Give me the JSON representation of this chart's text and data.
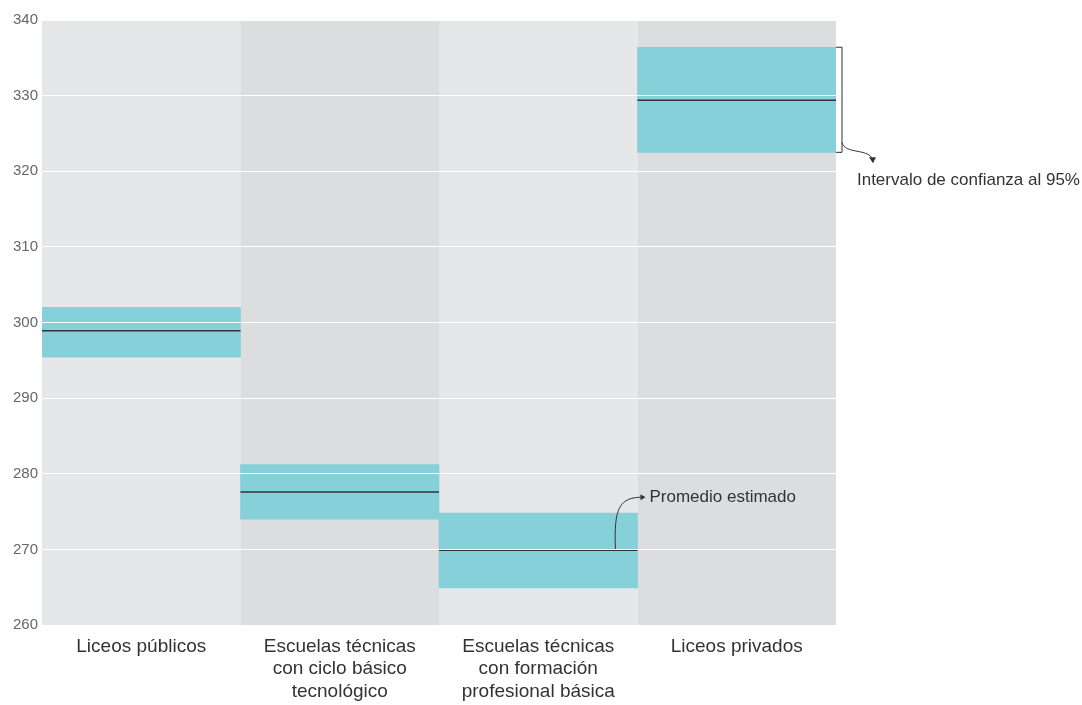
{
  "chart_data": {
    "type": "box",
    "categories": [
      "Liceos públicos",
      "Escuelas técnicas con ciclo básico tecnológico",
      "Escuelas técnicas con formación profesional básica",
      "Liceos privados"
    ],
    "series": [
      {
        "color": "#86d0d9",
        "boxes": [
          {
            "low": 295.4,
            "q1": 295.4,
            "median": 298.9,
            "q3": 302.0,
            "high": 302.0
          },
          {
            "low": 274.0,
            "q1": 274.0,
            "median": 277.6,
            "q3": 281.2,
            "high": 281.2
          },
          {
            "low": 264.9,
            "q1": 264.9,
            "median": 269.9,
            "q3": 274.8,
            "high": 274.8
          },
          {
            "low": 322.5,
            "q1": 322.5,
            "median": 329.4,
            "q3": 336.4,
            "high": 336.4
          }
        ]
      }
    ],
    "ylim": [
      260,
      340
    ],
    "yticks": [
      260,
      270,
      280,
      290,
      300,
      310,
      320,
      330,
      340
    ],
    "grid": "y",
    "annotations": [
      "Intervalo de confianza al 95%",
      "Promedio estimado"
    ]
  }
}
